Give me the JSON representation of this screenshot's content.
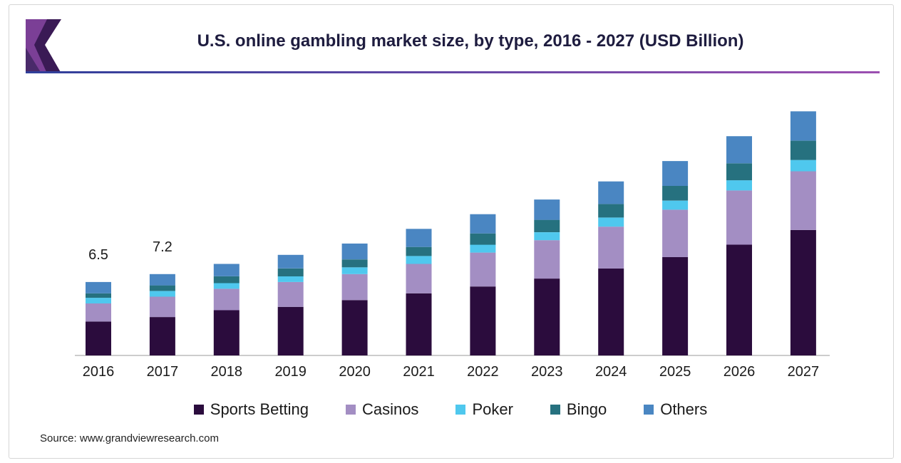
{
  "title": "U.S. online gambling market size, by type, 2016 - 2027 (USD Billion)",
  "source": "Source: www.grandviewresearch.com",
  "colors": {
    "Sports Betting": "#2b0c3d",
    "Casinos": "#a38ec3",
    "Poker": "#4fc8ee",
    "Bingo": "#26717f",
    "Others": "#4a86c2"
  },
  "chart_data": {
    "type": "bar",
    "stacked": true,
    "categories": [
      "2016",
      "2017",
      "2018",
      "2019",
      "2020",
      "2021",
      "2022",
      "2023",
      "2024",
      "2025",
      "2026",
      "2027"
    ],
    "series": [
      {
        "name": "Sports Betting",
        "values": [
          3.0,
          3.4,
          4.0,
          4.3,
          4.9,
          5.5,
          6.1,
          6.8,
          7.7,
          8.7,
          9.8,
          11.1
        ]
      },
      {
        "name": "Casinos",
        "values": [
          1.6,
          1.8,
          1.9,
          2.2,
          2.3,
          2.6,
          3.0,
          3.4,
          3.7,
          4.2,
          4.8,
          5.2
        ]
      },
      {
        "name": "Poker",
        "values": [
          0.5,
          0.5,
          0.5,
          0.5,
          0.6,
          0.7,
          0.7,
          0.7,
          0.8,
          0.8,
          0.9,
          1.0
        ]
      },
      {
        "name": "Bingo",
        "values": [
          0.4,
          0.5,
          0.6,
          0.7,
          0.7,
          0.8,
          1.0,
          1.1,
          1.2,
          1.3,
          1.5,
          1.7
        ]
      },
      {
        "name": "Others",
        "values": [
          1.0,
          1.0,
          1.1,
          1.2,
          1.4,
          1.6,
          1.7,
          1.8,
          2.0,
          2.2,
          2.4,
          2.6
        ]
      }
    ],
    "data_labels": [
      {
        "category": "2016",
        "text": "6.5"
      },
      {
        "category": "2017",
        "text": "7.2"
      }
    ],
    "ylim": [
      0,
      22
    ],
    "xlabel": "",
    "ylabel": "",
    "grid": false,
    "legend_position": "bottom"
  }
}
